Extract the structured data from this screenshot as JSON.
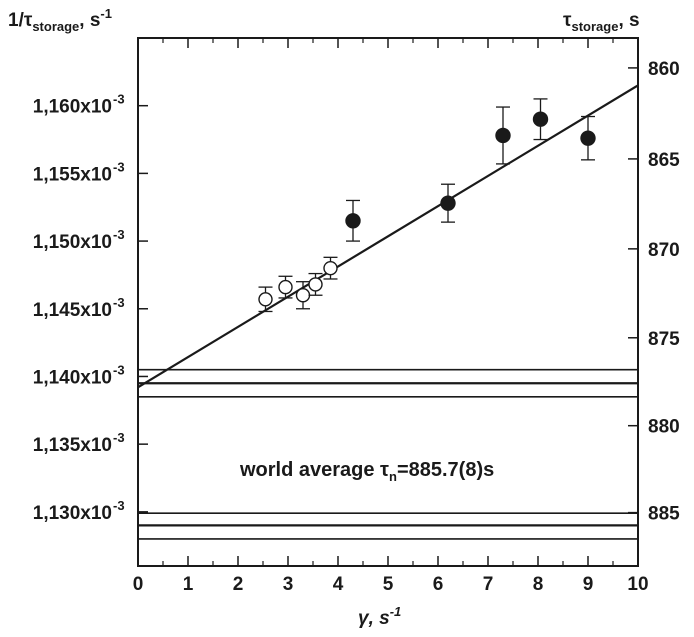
{
  "chart_data": {
    "type": "scatter",
    "title": "",
    "left_axis": {
      "label_main": "1/τ",
      "label_sub": "storage",
      "label_unit_prefix": ", s",
      "label_unit_sup": "-1"
    },
    "right_axis": {
      "label_main": "τ",
      "label_sub": "storage",
      "label_unit": ", s"
    },
    "x_axis": {
      "label_main": "γ, s",
      "label_sup": "-1"
    },
    "xlim": [
      0,
      10
    ],
    "ylim": [
      0.001126,
      0.001165
    ],
    "x_ticks": [
      {
        "value": 0,
        "label": "0"
      },
      {
        "value": 1,
        "label": "1"
      },
      {
        "value": 2,
        "label": "2"
      },
      {
        "value": 3,
        "label": "3"
      },
      {
        "value": 4,
        "label": "4"
      },
      {
        "value": 5,
        "label": "5"
      },
      {
        "value": 6,
        "label": "6"
      },
      {
        "value": 7,
        "label": "7"
      },
      {
        "value": 8,
        "label": "8"
      },
      {
        "value": 9,
        "label": "9"
      },
      {
        "value": 10,
        "label": "10"
      }
    ],
    "y_ticks_left": [
      {
        "value": 0.00113,
        "mantissa": "1,130x10",
        "exp": "-3"
      },
      {
        "value": 0.001135,
        "mantissa": "1,135x10",
        "exp": "-3"
      },
      {
        "value": 0.00114,
        "mantissa": "1,140x10",
        "exp": "-3"
      },
      {
        "value": 0.001145,
        "mantissa": "1,145x10",
        "exp": "-3"
      },
      {
        "value": 0.00115,
        "mantissa": "1,150x10",
        "exp": "-3"
      },
      {
        "value": 0.001155,
        "mantissa": "1,155x10",
        "exp": "-3"
      },
      {
        "value": 0.00116,
        "mantissa": "1,160x10",
        "exp": "-3"
      }
    ],
    "y_ticks_right": [
      {
        "tau": 860,
        "label": "860"
      },
      {
        "tau": 865,
        "label": "865"
      },
      {
        "tau": 870,
        "label": "870"
      },
      {
        "tau": 875,
        "label": "875"
      },
      {
        "tau": 880,
        "label": "880"
      },
      {
        "tau": 885,
        "label": "885"
      }
    ],
    "series": [
      {
        "marker": "open-circle",
        "points": [
          {
            "x": 2.55,
            "y": 0.0011457,
            "err": 9e-07
          },
          {
            "x": 2.95,
            "y": 0.0011466,
            "err": 8e-07
          },
          {
            "x": 3.3,
            "y": 0.001146,
            "err": 1e-06
          },
          {
            "x": 3.55,
            "y": 0.0011468,
            "err": 8e-07
          },
          {
            "x": 3.85,
            "y": 0.001148,
            "err": 8e-07
          }
        ]
      },
      {
        "marker": "filled-circle",
        "points": [
          {
            "x": 4.3,
            "y": 0.0011515,
            "err": 1.5e-06
          },
          {
            "x": 6.2,
            "y": 0.0011528,
            "err": 1.4e-06
          },
          {
            "x": 7.3,
            "y": 0.0011578,
            "err": 2.1e-06
          },
          {
            "x": 8.05,
            "y": 0.001159,
            "err": 1.5e-06
          },
          {
            "x": 9.0,
            "y": 0.0011576,
            "err": 1.6e-06
          }
        ]
      }
    ],
    "fit_line": {
      "x": [
        0,
        10
      ],
      "y": [
        0.0011392,
        0.0011615
      ]
    },
    "bands": [
      {
        "center": 0.0011395,
        "upper": 0.0011405,
        "lower": 0.0011385
      },
      {
        "center": 0.001129,
        "upper": 0.0011299,
        "lower": 0.001128
      }
    ],
    "annotation": {
      "text_main": "world average τ",
      "text_sub": "n",
      "text_tail": "=885.7(8)s"
    }
  }
}
